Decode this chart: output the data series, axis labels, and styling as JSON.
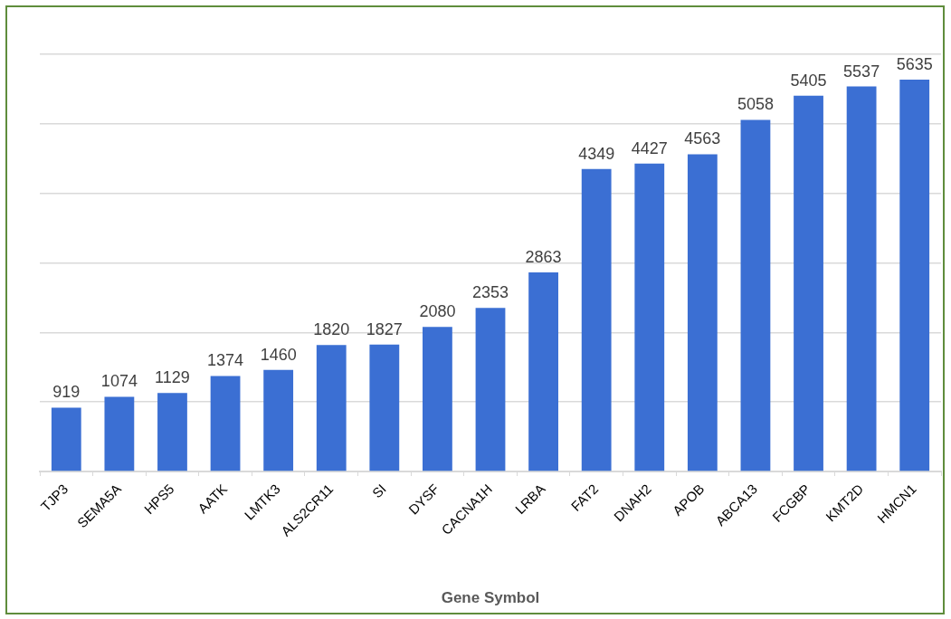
{
  "chart_data": {
    "type": "bar",
    "xlabel": "Gene Symbol",
    "categories": [
      "TJP3",
      "SEMA5A",
      "HPS5",
      "AATK",
      "LMTK3",
      "ALS2CR11",
      "SI",
      "DYSF",
      "CACNA1H",
      "LRBA",
      "FAT2",
      "DNAH2",
      "APOB",
      "ABCA13",
      "FCGBP",
      "KMT2D",
      "HMCN1"
    ],
    "values": [
      919,
      1074,
      1129,
      1374,
      1460,
      1820,
      1827,
      2080,
      2353,
      2863,
      4349,
      4427,
      4563,
      5058,
      5405,
      5537,
      5635
    ],
    "color": "#3b6fd3",
    "tick_labels": "x",
    "grid": "y",
    "data_labels": true
  }
}
